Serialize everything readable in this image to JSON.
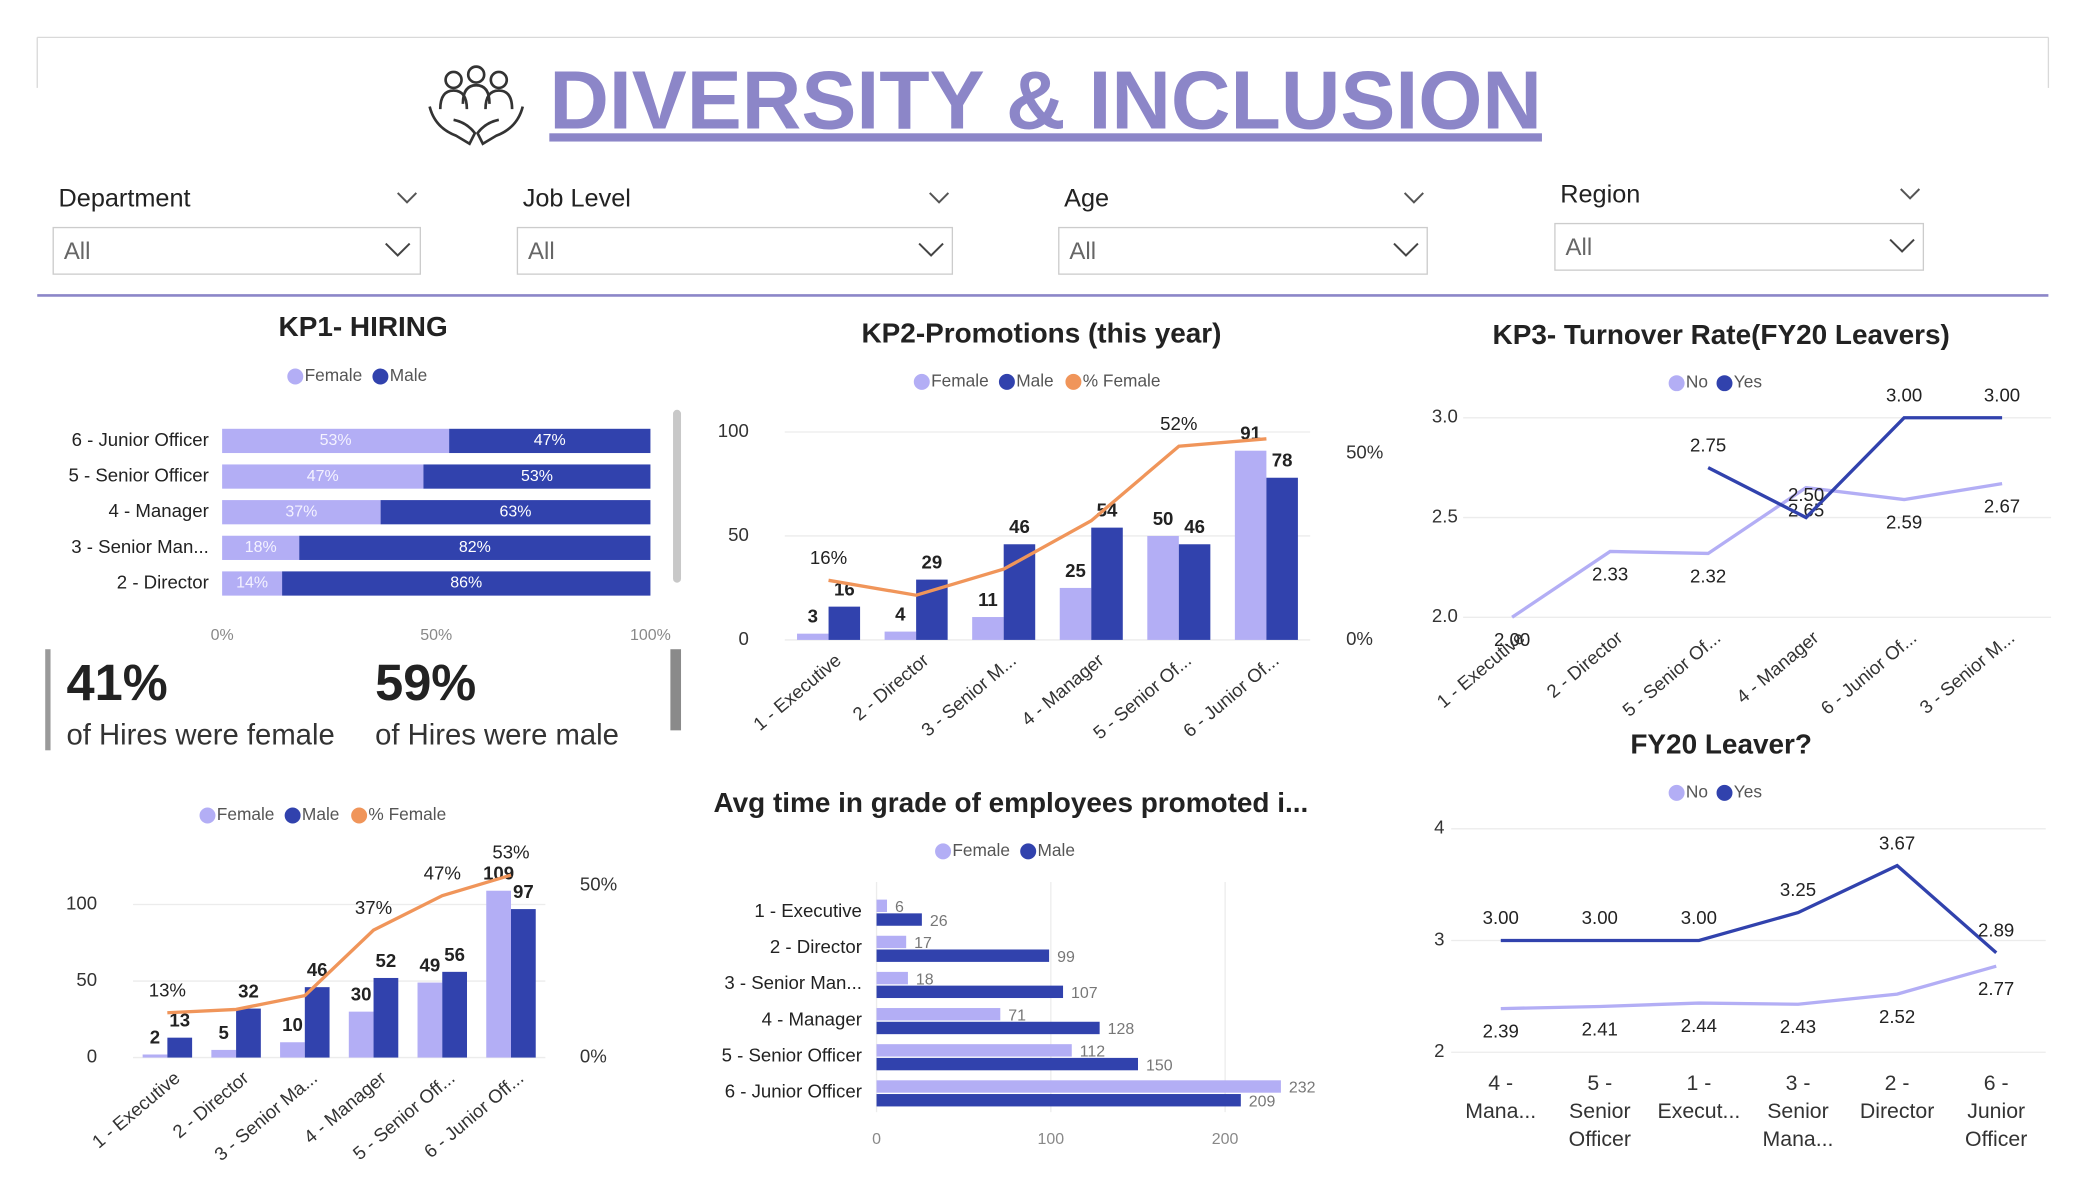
{
  "header": {
    "title": "DIVERSITY & INCLUSION"
  },
  "filters": [
    {
      "label": "Department",
      "value": "All"
    },
    {
      "label": "Job Level",
      "value": "All"
    },
    {
      "label": "Age",
      "value": "All"
    },
    {
      "label": "Region",
      "value": "All"
    }
  ],
  "kpi_cards": [
    {
      "value": "41%",
      "label": "of Hires were female"
    },
    {
      "value": "59%",
      "label": "of Hires were male"
    }
  ],
  "chart_data": [
    {
      "type": "stacked_hbar",
      "title": "KP1- HIRING",
      "categories": [
        "6 - Junior Officer",
        "5 - Senior Officer",
        "4 - Manager",
        "3 - Senior Man...",
        "2 - Director"
      ],
      "series": [
        {
          "name": "Female",
          "color": "#b3aef5",
          "values": [
            53,
            47,
            37,
            18,
            14
          ],
          "value_labels": [
            "53%",
            "47%",
            "37%",
            "18%",
            "14%"
          ]
        },
        {
          "name": "Male",
          "color": "#3142ad",
          "values": [
            47,
            53,
            63,
            82,
            86
          ],
          "value_labels": [
            "47%",
            "53%",
            "63%",
            "82%",
            "86%"
          ]
        }
      ],
      "xlim": [
        0,
        100
      ],
      "xticks": [
        {
          "value": 0,
          "label": "0%"
        },
        {
          "value": 50,
          "label": "50%"
        },
        {
          "value": 100,
          "label": "100%"
        }
      ],
      "legend": "top"
    },
    {
      "type": "combo",
      "categories": [
        "1 - Executive",
        "2 - Director",
        "3 - Senior Ma...",
        "4 - Manager",
        "5 - Senior Off...",
        "6 - Junior Off..."
      ],
      "series": [
        {
          "name": "Female",
          "color": "#b3aef5",
          "values": [
            2,
            5,
            10,
            30,
            49,
            109
          ]
        },
        {
          "name": "Male",
          "color": "#3142ad",
          "values": [
            13,
            32,
            46,
            52,
            56,
            97
          ]
        },
        {
          "name": "% Female",
          "color": "#f0955a",
          "axis": "y2",
          "values": [
            13,
            14,
            18,
            37,
            47,
            53
          ],
          "value_labels": [
            "13%",
            null,
            null,
            "37%",
            "47%",
            "53%"
          ]
        }
      ],
      "ylim": [
        0,
        126
      ],
      "yticks": [
        0,
        50,
        100
      ],
      "y2lim": [
        0,
        56
      ],
      "y2ticks": [
        {
          "value": 0,
          "label": "0%"
        },
        {
          "value": 50,
          "label": "50%"
        }
      ],
      "grid": true,
      "legend": "top"
    },
    {
      "type": "combo",
      "title": "KP2-Promotions (this year)",
      "categories": [
        "1 - Executive",
        "2 - Director",
        "3 - Senior M...",
        "4 - Manager",
        "5 - Senior Of...",
        "6 - Junior Of..."
      ],
      "series": [
        {
          "name": "Female",
          "color": "#b3aef5",
          "values": [
            3,
            4,
            11,
            25,
            50,
            91
          ]
        },
        {
          "name": "Male",
          "color": "#3142ad",
          "values": [
            16,
            29,
            46,
            54,
            46,
            78
          ]
        },
        {
          "name": "% Female",
          "color": "#f0955a",
          "axis": "y2",
          "values": [
            16,
            12,
            19,
            32,
            52,
            54
          ],
          "value_labels": [
            "16%",
            null,
            null,
            null,
            "52%",
            null
          ]
        }
      ],
      "ylim": [
        0,
        103
      ],
      "yticks": [
        0,
        50,
        100
      ],
      "y2lim": [
        0,
        57.5
      ],
      "y2ticks": [
        {
          "value": 0,
          "label": "0%"
        },
        {
          "value": 50,
          "label": "50%"
        }
      ],
      "grid": true,
      "legend": "top"
    },
    {
      "type": "line",
      "title": "KP3- Turnover Rate(FY20 Leavers)",
      "categories": [
        "1 - Executive",
        "2 - Director",
        "5 - Senior Of...",
        "4 - Manager",
        "6 - Junior Of...",
        "3 - Senior M..."
      ],
      "series": [
        {
          "name": "No",
          "color": "#b3aef5",
          "values": [
            2.0,
            2.33,
            2.32,
            2.65,
            2.59,
            2.67
          ],
          "value_labels": [
            "2.00",
            "2.33",
            "2.32",
            "2.65",
            "2.59",
            "2.67"
          ]
        },
        {
          "name": "Yes",
          "color": "#3142ad",
          "values": [
            null,
            null,
            2.75,
            2.5,
            3.0,
            3.0
          ],
          "value_labels": [
            null,
            null,
            "2.75",
            "2.50",
            "3.00",
            "3.00"
          ]
        }
      ],
      "ylim": [
        2,
        3
      ],
      "yticks": [
        {
          "value": 2,
          "label": "2.0"
        },
        2.5,
        {
          "value": 3,
          "label": "3.0"
        }
      ],
      "grid": true,
      "legend": "top"
    },
    {
      "type": "line",
      "title": "FY20 Leaver?",
      "categories": [
        "4 - Mana...",
        "5 - Senior Officer",
        "1 - Execut...",
        "3 - Senior Mana...",
        "2 - Director",
        "6 - Junior Officer"
      ],
      "series": [
        {
          "name": "No",
          "color": "#b3aef5",
          "values": [
            2.39,
            2.41,
            2.44,
            2.43,
            2.52,
            2.77
          ]
        },
        {
          "name": "Yes",
          "color": "#3142ad",
          "values": [
            3.0,
            3.0,
            3.0,
            3.25,
            3.67,
            2.89
          ],
          "value_labels": [
            "3.00",
            "3.00",
            "3.00",
            "3.25",
            "3.67",
            "2.89"
          ]
        }
      ],
      "ylim": [
        2,
        4
      ],
      "yticks": [
        2,
        3,
        4
      ],
      "grid": true,
      "legend": "top"
    },
    {
      "type": "hbar",
      "title": "Avg time in grade of employees promoted i...",
      "categories": [
        "1 - Executive",
        "2 - Director",
        "3 - Senior Man...",
        "4 - Manager",
        "5 - Senior Officer",
        "6 - Junior Officer"
      ],
      "series": [
        {
          "name": "Female",
          "color": "#b3aef5",
          "values": [
            6,
            17,
            18,
            71,
            112,
            232
          ]
        },
        {
          "name": "Male",
          "color": "#3142ad",
          "values": [
            26,
            99,
            107,
            128,
            150,
            209
          ]
        }
      ],
      "xlim": [
        0,
        232
      ],
      "xticks": [
        0,
        100,
        200
      ],
      "grid": true,
      "legend": "top"
    }
  ]
}
